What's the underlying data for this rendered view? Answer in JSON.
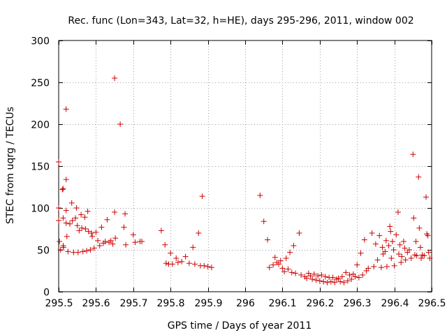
{
  "chart_data": {
    "type": "scatter",
    "title": "Rec. func (Lon=343, Lat=32, h=HE), days 295-296, 2011, window 002",
    "xlabel": "GPS time / Days of year 2011",
    "ylabel": "STEC from uqrg / TECUs",
    "xlim": [
      295.5,
      296.5
    ],
    "ylim": [
      0,
      300
    ],
    "grid": true,
    "marker": "+",
    "marker_color": "#cc0000",
    "xticks": [
      295.5,
      295.6,
      295.7,
      295.8,
      295.9,
      296.0,
      296.1,
      296.2,
      296.3,
      296.4,
      296.5
    ],
    "xtick_labels": [
      "295.5",
      "295.6",
      "295.7",
      "295.8",
      "295.9",
      "296",
      "296.1",
      "296.2",
      "296.3",
      "296.4",
      "296.5"
    ],
    "yticks": [
      0,
      50,
      100,
      150,
      200,
      250,
      300
    ],
    "ytick_labels": [
      "0",
      "50",
      "100",
      "150",
      "200",
      "250",
      "300"
    ],
    "series": [
      {
        "name": "STEC",
        "points": [
          [
            295.5,
            155
          ],
          [
            295.5,
            100
          ],
          [
            295.5,
            85
          ],
          [
            295.502,
            60
          ],
          [
            295.505,
            50
          ],
          [
            295.51,
            122
          ],
          [
            295.512,
            123
          ],
          [
            295.512,
            88
          ],
          [
            295.512,
            55
          ],
          [
            295.513,
            53
          ],
          [
            295.52,
            218
          ],
          [
            295.52,
            134
          ],
          [
            295.52,
            97
          ],
          [
            295.52,
            82
          ],
          [
            295.522,
            66
          ],
          [
            295.525,
            48
          ],
          [
            295.53,
            81
          ],
          [
            295.535,
            106
          ],
          [
            295.537,
            85
          ],
          [
            295.54,
            47
          ],
          [
            295.545,
            88
          ],
          [
            295.548,
            100
          ],
          [
            295.55,
            79
          ],
          [
            295.552,
            47
          ],
          [
            295.555,
            73
          ],
          [
            295.56,
            92
          ],
          [
            295.562,
            76
          ],
          [
            295.565,
            48
          ],
          [
            295.57,
            89
          ],
          [
            295.572,
            75
          ],
          [
            295.575,
            49
          ],
          [
            295.578,
            96
          ],
          [
            295.58,
            72
          ],
          [
            295.585,
            50
          ],
          [
            295.588,
            70
          ],
          [
            295.59,
            66
          ],
          [
            295.595,
            52
          ],
          [
            295.6,
            71
          ],
          [
            295.605,
            61
          ],
          [
            295.61,
            55
          ],
          [
            295.615,
            77
          ],
          [
            295.62,
            58
          ],
          [
            295.625,
            60
          ],
          [
            295.63,
            86
          ],
          [
            295.635,
            59
          ],
          [
            295.64,
            61
          ],
          [
            295.645,
            57
          ],
          [
            295.65,
            255
          ],
          [
            295.65,
            95
          ],
          [
            295.652,
            64
          ],
          [
            295.665,
            200
          ],
          [
            295.675,
            77
          ],
          [
            295.678,
            93
          ],
          [
            295.68,
            56
          ],
          [
            295.7,
            68
          ],
          [
            295.705,
            59
          ],
          [
            295.718,
            60
          ],
          [
            295.723,
            60
          ],
          [
            295.775,
            73
          ],
          [
            295.785,
            56
          ],
          [
            295.788,
            34
          ],
          [
            295.795,
            33
          ],
          [
            295.8,
            46
          ],
          [
            295.805,
            33
          ],
          [
            295.815,
            40
          ],
          [
            295.82,
            35
          ],
          [
            295.83,
            36
          ],
          [
            295.84,
            42
          ],
          [
            295.85,
            34
          ],
          [
            295.86,
            53
          ],
          [
            295.865,
            33
          ],
          [
            295.875,
            70
          ],
          [
            295.88,
            31
          ],
          [
            295.885,
            114
          ],
          [
            295.89,
            31
          ],
          [
            295.9,
            30
          ],
          [
            295.91,
            29
          ],
          [
            296.04,
            115
          ],
          [
            296.05,
            84
          ],
          [
            296.06,
            62
          ],
          [
            296.065,
            29
          ],
          [
            296.075,
            32
          ],
          [
            296.08,
            41
          ],
          [
            296.085,
            35
          ],
          [
            296.09,
            33
          ],
          [
            296.095,
            37
          ],
          [
            296.1,
            28
          ],
          [
            296.105,
            24
          ],
          [
            296.11,
            40
          ],
          [
            296.115,
            27
          ],
          [
            296.12,
            47
          ],
          [
            296.125,
            23
          ],
          [
            296.13,
            55
          ],
          [
            296.135,
            22
          ],
          [
            296.145,
            70
          ],
          [
            296.15,
            20
          ],
          [
            296.16,
            18
          ],
          [
            296.165,
            16
          ],
          [
            296.17,
            22
          ],
          [
            296.175,
            19
          ],
          [
            296.18,
            15
          ],
          [
            296.185,
            21
          ],
          [
            296.19,
            14
          ],
          [
            296.195,
            19
          ],
          [
            296.2,
            13
          ],
          [
            296.205,
            20
          ],
          [
            296.21,
            12
          ],
          [
            296.215,
            18
          ],
          [
            296.22,
            11
          ],
          [
            296.225,
            17
          ],
          [
            296.23,
            12
          ],
          [
            296.235,
            17
          ],
          [
            296.24,
            11
          ],
          [
            296.245,
            15
          ],
          [
            296.25,
            16
          ],
          [
            296.255,
            12
          ],
          [
            296.26,
            18
          ],
          [
            296.265,
            11
          ],
          [
            296.27,
            23
          ],
          [
            296.275,
            13
          ],
          [
            296.28,
            20
          ],
          [
            296.285,
            15
          ],
          [
            296.29,
            21
          ],
          [
            296.295,
            18
          ],
          [
            296.3,
            32
          ],
          [
            296.305,
            17
          ],
          [
            296.31,
            46
          ],
          [
            296.315,
            20
          ],
          [
            296.32,
            62
          ],
          [
            296.325,
            25
          ],
          [
            296.33,
            28
          ],
          [
            296.34,
            70
          ],
          [
            296.345,
            30
          ],
          [
            296.35,
            57
          ],
          [
            296.355,
            38
          ],
          [
            296.36,
            67
          ],
          [
            296.365,
            29
          ],
          [
            296.368,
            53
          ],
          [
            296.37,
            45
          ],
          [
            296.375,
            48
          ],
          [
            296.378,
            61
          ],
          [
            296.38,
            30
          ],
          [
            296.385,
            55
          ],
          [
            296.388,
            78
          ],
          [
            296.39,
            72
          ],
          [
            296.392,
            40
          ],
          [
            296.395,
            60
          ],
          [
            296.398,
            50
          ],
          [
            296.4,
            31
          ],
          [
            296.405,
            68
          ],
          [
            296.41,
            95
          ],
          [
            296.412,
            45
          ],
          [
            296.415,
            56
          ],
          [
            296.418,
            35
          ],
          [
            296.42,
            42
          ],
          [
            296.425,
            60
          ],
          [
            296.428,
            52
          ],
          [
            296.43,
            38
          ],
          [
            296.435,
            47
          ],
          [
            296.44,
            50
          ],
          [
            296.445,
            40
          ],
          [
            296.45,
            164
          ],
          [
            296.452,
            88
          ],
          [
            296.455,
            44
          ],
          [
            296.458,
            60
          ],
          [
            296.46,
            43
          ],
          [
            296.465,
            137
          ],
          [
            296.467,
            76
          ],
          [
            296.47,
            53
          ],
          [
            296.472,
            40
          ],
          [
            296.475,
            44
          ],
          [
            296.48,
            43
          ],
          [
            296.485,
            113
          ],
          [
            296.487,
            69
          ],
          [
            296.49,
            67
          ],
          [
            296.492,
            47
          ],
          [
            296.495,
            40
          ]
        ]
      }
    ]
  }
}
